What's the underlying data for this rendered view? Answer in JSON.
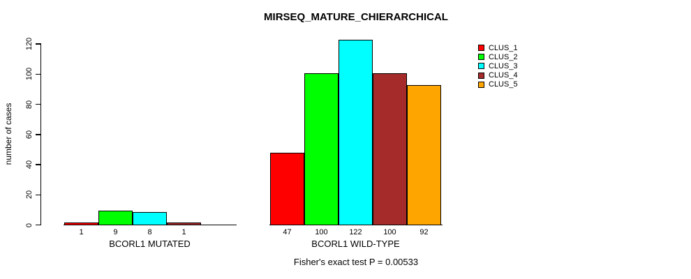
{
  "chart_data": {
    "type": "bar",
    "title": "MIRSEQ_MATURE_CHIERARCHICAL",
    "ylabel": "number of cases",
    "xlabel": "",
    "annotation": "Fisher's exact test P = 0.00533",
    "categories": [
      "BCORL1 MUTATED",
      "BCORL1 WILD-TYPE"
    ],
    "series": [
      {
        "name": "CLUS_1",
        "color": "#FF0000",
        "values": [
          1,
          47
        ]
      },
      {
        "name": "CLUS_2",
        "color": "#00FF00",
        "values": [
          9,
          100
        ]
      },
      {
        "name": "CLUS_3",
        "color": "#00FFFF",
        "values": [
          8,
          122
        ]
      },
      {
        "name": "CLUS_4",
        "color": "#A52A2A",
        "values": [
          1,
          100
        ]
      },
      {
        "name": "CLUS_5",
        "color": "#FFA500",
        "values": [
          0,
          92
        ]
      }
    ],
    "bar_labels": [
      [
        "1",
        "9",
        "8",
        "1",
        ""
      ],
      [
        "47",
        "100",
        "122",
        "100",
        "92"
      ]
    ],
    "yticks": [
      0,
      20,
      40,
      60,
      80,
      100,
      120
    ],
    "ylim": [
      0,
      122
    ],
    "grid": false,
    "legend_position": "top-right",
    "colors": {
      "axis": "#000000",
      "text": "#000000",
      "background": "#FFFFFF"
    }
  }
}
